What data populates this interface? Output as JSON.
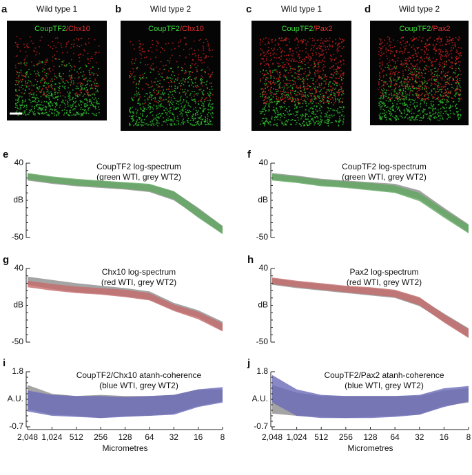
{
  "images": [
    {
      "panel_label": "a",
      "title": "Wild type 1",
      "label_green": "CoupTF2",
      "label_red": "/Chx10"
    },
    {
      "panel_label": "b",
      "title": "Wild type 2",
      "label_green": "CoupTF2",
      "label_red": "/Chx10"
    },
    {
      "panel_label": "c",
      "title": "Wild type 1",
      "label_green": "CoupTF2",
      "label_red": "/Pax2"
    },
    {
      "panel_label": "d",
      "title": "Wild type 2",
      "label_green": "CoupTF2",
      "label_red": "/Pax2"
    }
  ],
  "chart_data": [
    {
      "type": "band",
      "panel_label": "e",
      "title": "CoupTF2 log-spectrum",
      "subtitle": "(green WTI, grey WT2)",
      "ylabel": "dB",
      "xscale": "log",
      "xlim": [
        2048,
        8
      ],
      "ylim": [
        -50,
        40
      ],
      "yticks": [
        40,
        -50
      ],
      "x": [
        2048,
        1024,
        512,
        256,
        128,
        64,
        32,
        16,
        8
      ],
      "series": [
        {
          "color": "#9a9a9a",
          "upper": [
            27,
            23,
            20,
            18,
            16,
            14,
            6,
            -14,
            -36
          ],
          "lower": [
            19,
            15,
            12,
            10,
            8,
            5,
            -5,
            -25,
            -45
          ]
        },
        {
          "color": "#5fa85f",
          "upper": [
            28,
            24,
            21,
            19,
            17,
            15,
            6,
            -15,
            -36
          ],
          "lower": [
            20,
            16,
            13,
            11,
            9,
            6,
            -4,
            -26,
            -46
          ]
        }
      ]
    },
    {
      "type": "band",
      "panel_label": "f",
      "title": "CoupTF2 log-spectrum",
      "subtitle": "(green WTI, grey WT2)",
      "ylabel": "dB",
      "xscale": "log",
      "xlim": [
        2048,
        8
      ],
      "ylim": [
        -50,
        40
      ],
      "yticks": [
        40,
        -50
      ],
      "x": [
        2048,
        1024,
        512,
        256,
        128,
        64,
        32,
        16,
        8
      ],
      "series": [
        {
          "color": "#9a9a9a",
          "upper": [
            28,
            25,
            21,
            19,
            17,
            15,
            7,
            -14,
            -34
          ],
          "lower": [
            20,
            17,
            13,
            11,
            8,
            5,
            -4,
            -24,
            -44
          ]
        },
        {
          "color": "#5fa85f",
          "upper": [
            27,
            24,
            20,
            18,
            16,
            13,
            4,
            -16,
            -35
          ],
          "lower": [
            19,
            16,
            12,
            10,
            7,
            4,
            -6,
            -26,
            -45
          ]
        }
      ]
    },
    {
      "type": "band",
      "panel_label": "g",
      "title": "Chx10 log-spectrum",
      "subtitle": "(red WTI, grey WT2)",
      "ylabel": "dB",
      "xscale": "log",
      "xlim": [
        2048,
        8
      ],
      "ylim": [
        -50,
        40
      ],
      "yticks": [
        40,
        -50
      ],
      "x": [
        2048,
        1024,
        512,
        256,
        128,
        64,
        32,
        16,
        8
      ],
      "series": [
        {
          "color": "#9a9a9a",
          "upper": [
            30,
            26,
            22,
            19,
            16,
            12,
            -2,
            -11,
            -25
          ],
          "lower": [
            20,
            15,
            11,
            9,
            6,
            2,
            -11,
            -20,
            -36
          ]
        },
        {
          "color": "#c46a6a",
          "upper": [
            25,
            21,
            18,
            16,
            14,
            10,
            -4,
            -13,
            -27
          ],
          "lower": [
            17,
            13,
            10,
            8,
            5,
            1,
            -12,
            -22,
            -37
          ]
        }
      ]
    },
    {
      "type": "band",
      "panel_label": "h",
      "title": "Pax2 log-spectrum",
      "subtitle": "(red WTI, grey WT2)",
      "ylabel": "dB",
      "xscale": "log",
      "xlim": [
        2048,
        8
      ],
      "ylim": [
        -50,
        40
      ],
      "yticks": [
        40,
        -50
      ],
      "x": [
        2048,
        1024,
        512,
        256,
        128,
        64,
        32,
        16,
        8
      ],
      "series": [
        {
          "color": "#9a9a9a",
          "upper": [
            28,
            24,
            21,
            18,
            16,
            13,
            4,
            -15,
            -33
          ],
          "lower": [
            20,
            16,
            13,
            10,
            7,
            4,
            -6,
            -25,
            -44
          ]
        },
        {
          "color": "#c46a6a",
          "upper": [
            29,
            25,
            22,
            19,
            17,
            14,
            5,
            -16,
            -34
          ],
          "lower": [
            21,
            17,
            14,
            11,
            8,
            5,
            -5,
            -26,
            -45
          ]
        }
      ]
    },
    {
      "type": "band",
      "panel_label": "i",
      "title": "CoupTF2/Chx10 atanh-coherence",
      "subtitle": "(blue WTI, grey WT2)",
      "ylabel": "A.U.",
      "xlabel": "Micrometres",
      "xscale": "log",
      "xlim": [
        2048,
        8
      ],
      "ylim": [
        -0.7,
        1.8
      ],
      "yticks": [
        1.8,
        -0.7
      ],
      "xticks": [
        {
          "value": 2048,
          "label": "2,048"
        },
        {
          "value": 1024,
          "label": "1,024"
        },
        512,
        256,
        128,
        64,
        32,
        16,
        8
      ],
      "x": [
        2048,
        1024,
        512,
        256,
        128,
        64,
        32,
        16,
        8
      ],
      "series": [
        {
          "color": "#9a9a9a",
          "upper": [
            1.2,
            0.8,
            0.7,
            0.75,
            0.7,
            0.7,
            0.75,
            1.0,
            1.0
          ],
          "lower": [
            0.1,
            -0.15,
            -0.2,
            -0.3,
            -0.2,
            -0.2,
            -0.1,
            0.25,
            0.45
          ]
        },
        {
          "color": "#6a6ab8",
          "upper": [
            0.95,
            0.75,
            0.7,
            0.7,
            0.65,
            0.7,
            0.75,
            1.0,
            1.1
          ],
          "lower": [
            0.0,
            -0.2,
            -0.25,
            -0.3,
            -0.25,
            -0.2,
            -0.15,
            0.2,
            0.4
          ]
        }
      ]
    },
    {
      "type": "band",
      "panel_label": "j",
      "title": "CoupTF2/Pax2 atanh-coherence",
      "subtitle": "(blue WTI, grey WT2)",
      "ylabel": "A.U.",
      "xlabel": "Micrometres",
      "xscale": "log",
      "xlim": [
        2048,
        8
      ],
      "ylim": [
        -0.7,
        1.8
      ],
      "yticks": [
        1.8,
        -0.7
      ],
      "xticks": [
        {
          "value": 2048,
          "label": "2,048"
        },
        {
          "value": 1024,
          "label": "1,024"
        },
        512,
        256,
        128,
        64,
        32,
        16,
        8
      ],
      "x": [
        2048,
        1024,
        512,
        256,
        128,
        64,
        32,
        16,
        8
      ],
      "series": [
        {
          "color": "#9a9a9a",
          "upper": [
            1.2,
            0.85,
            0.7,
            0.7,
            0.7,
            0.7,
            0.7,
            0.95,
            1.05
          ],
          "lower": [
            -0.1,
            -0.2,
            -0.25,
            -0.3,
            -0.25,
            -0.2,
            -0.15,
            0.25,
            0.4
          ]
        },
        {
          "color": "#6a6ab8",
          "upper": [
            1.65,
            1.0,
            0.75,
            0.7,
            0.7,
            0.7,
            0.75,
            1.05,
            1.15
          ],
          "lower": [
            0.4,
            -0.2,
            -0.3,
            -0.3,
            -0.3,
            -0.25,
            -0.15,
            0.2,
            0.45
          ]
        }
      ]
    }
  ]
}
